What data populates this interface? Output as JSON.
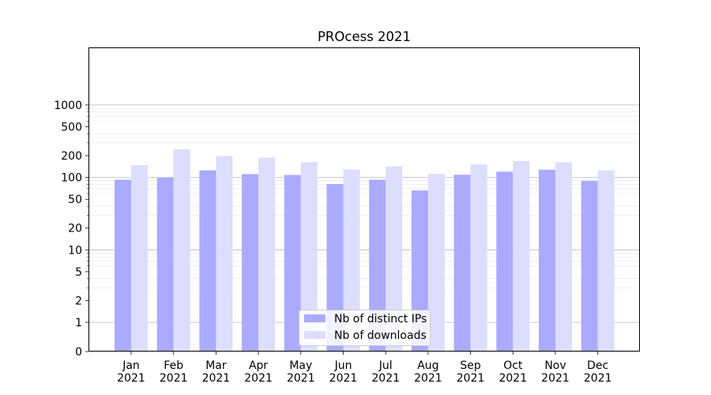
{
  "chart_data": {
    "type": "bar",
    "title": "PROcess 2021",
    "xlabel": "",
    "ylabel": "",
    "yscale": "symlog",
    "ylim": [
      0,
      1300
    ],
    "grid": true,
    "legend_position": "bottom-center",
    "categories": [
      "Jan\n2021",
      "Feb\n2021",
      "Mar\n2021",
      "Apr\n2021",
      "May\n2021",
      "Jun\n2021",
      "Jul\n2021",
      "Aug\n2021",
      "Sep\n2021",
      "Oct\n2021",
      "Nov\n2021",
      "Dec\n2021"
    ],
    "yticks": [
      0,
      1,
      2,
      5,
      10,
      20,
      50,
      100,
      200,
      500,
      1000
    ],
    "series": [
      {
        "name": "Nb of distinct IPs",
        "color": "#aaaaff",
        "values": [
          93,
          99,
          125,
          111,
          108,
          81,
          93,
          66,
          109,
          120,
          128,
          90
        ]
      },
      {
        "name": "Nb of downloads",
        "color": "#ddddff",
        "values": [
          148,
          245,
          198,
          188,
          162,
          129,
          143,
          112,
          151,
          168,
          162,
          125
        ]
      }
    ]
  }
}
